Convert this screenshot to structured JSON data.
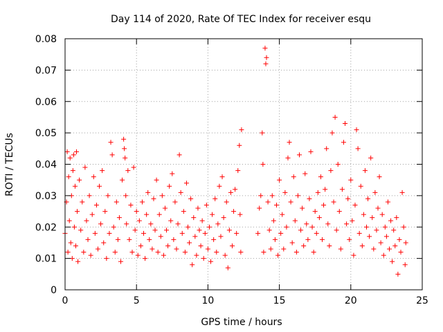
{
  "chart_data": {
    "type": "scatter",
    "title": "Day 114 of 2020, Rate Of TEC Index for receiver esqu",
    "xlabel": "GPS time / hours",
    "ylabel": "ROTI / TECUs",
    "xlim": [
      0,
      25
    ],
    "ylim": [
      0,
      0.08
    ],
    "xticks": [
      0,
      5,
      10,
      15,
      20,
      25
    ],
    "xtick_labels": [
      "0",
      "5",
      "10",
      "15",
      "20",
      "25"
    ],
    "yticks": [
      0,
      0.01,
      0.02,
      0.03,
      0.04,
      0.05,
      0.06,
      0.07,
      0.08
    ],
    "ytick_labels": [
      "0",
      "0.01",
      "0.02",
      "0.03",
      "0.04",
      "0.05",
      "0.06",
      "0.07",
      "0.08"
    ],
    "grid": true,
    "marker": "+",
    "color": "#ff0000",
    "series": [
      {
        "name": "ROTI",
        "points": [
          [
            0.0,
            0.018
          ],
          [
            0.1,
            0.028
          ],
          [
            0.15,
            0.044
          ],
          [
            0.2,
            0.012
          ],
          [
            0.25,
            0.036
          ],
          [
            0.3,
            0.022
          ],
          [
            0.35,
            0.042
          ],
          [
            0.4,
            0.015
          ],
          [
            0.45,
            0.03
          ],
          [
            0.5,
            0.01
          ],
          [
            0.55,
            0.038
          ],
          [
            0.6,
            0.043
          ],
          [
            0.65,
            0.02
          ],
          [
            0.7,
            0.033
          ],
          [
            0.75,
            0.014
          ],
          [
            0.8,
            0.044
          ],
          [
            0.85,
            0.025
          ],
          [
            0.9,
            0.009
          ],
          [
            1.0,
            0.035
          ],
          [
            1.1,
            0.019
          ],
          [
            1.2,
            0.028
          ],
          [
            1.3,
            0.012
          ],
          [
            1.4,
            0.039
          ],
          [
            1.5,
            0.022
          ],
          [
            1.6,
            0.016
          ],
          [
            1.7,
            0.03
          ],
          [
            1.8,
            0.011
          ],
          [
            1.9,
            0.024
          ],
          [
            2.0,
            0.036
          ],
          [
            2.1,
            0.018
          ],
          [
            2.2,
            0.027
          ],
          [
            2.3,
            0.013
          ],
          [
            2.4,
            0.033
          ],
          [
            2.5,
            0.021
          ],
          [
            2.6,
            0.038
          ],
          [
            2.7,
            0.015
          ],
          [
            2.8,
            0.025
          ],
          [
            2.9,
            0.01
          ],
          [
            3.0,
            0.03
          ],
          [
            3.1,
            0.018
          ],
          [
            3.2,
            0.047
          ],
          [
            3.3,
            0.043
          ],
          [
            3.4,
            0.02
          ],
          [
            3.5,
            0.012
          ],
          [
            3.6,
            0.028
          ],
          [
            3.7,
            0.016
          ],
          [
            3.8,
            0.023
          ],
          [
            3.9,
            0.009
          ],
          [
            4.0,
            0.035
          ],
          [
            4.1,
            0.048
          ],
          [
            4.15,
            0.045
          ],
          [
            4.2,
            0.042
          ],
          [
            4.25,
            0.03
          ],
          [
            4.3,
            0.021
          ],
          [
            4.4,
            0.038
          ],
          [
            4.5,
            0.016
          ],
          [
            4.6,
            0.027
          ],
          [
            4.7,
            0.012
          ],
          [
            4.8,
            0.039
          ],
          [
            4.9,
            0.019
          ],
          [
            5.0,
            0.025
          ],
          [
            5.1,
            0.011
          ],
          [
            5.2,
            0.022
          ],
          [
            5.3,
            0.014
          ],
          [
            5.4,
            0.028
          ],
          [
            5.5,
            0.018
          ],
          [
            5.6,
            0.01
          ],
          [
            5.7,
            0.024
          ],
          [
            5.8,
            0.031
          ],
          [
            5.9,
            0.016
          ],
          [
            6.0,
            0.021
          ],
          [
            6.1,
            0.013
          ],
          [
            6.2,
            0.029
          ],
          [
            6.3,
            0.019
          ],
          [
            6.4,
            0.035
          ],
          [
            6.5,
            0.012
          ],
          [
            6.6,
            0.024
          ],
          [
            6.7,
            0.017
          ],
          [
            6.8,
            0.03
          ],
          [
            6.9,
            0.011
          ],
          [
            7.0,
            0.026
          ],
          [
            7.1,
            0.019
          ],
          [
            7.2,
            0.014
          ],
          [
            7.3,
            0.033
          ],
          [
            7.4,
            0.022
          ],
          [
            7.5,
            0.037
          ],
          [
            7.6,
            0.016
          ],
          [
            7.7,
            0.028
          ],
          [
            7.8,
            0.013
          ],
          [
            7.9,
            0.021
          ],
          [
            8.0,
            0.043
          ],
          [
            8.1,
            0.031
          ],
          [
            8.2,
            0.018
          ],
          [
            8.3,
            0.025
          ],
          [
            8.4,
            0.012
          ],
          [
            8.5,
            0.034
          ],
          [
            8.6,
            0.02
          ],
          [
            8.7,
            0.015
          ],
          [
            8.8,
            0.029
          ],
          [
            8.9,
            0.008
          ],
          [
            9.0,
            0.023
          ],
          [
            9.1,
            0.017
          ],
          [
            9.2,
            0.011
          ],
          [
            9.3,
            0.026
          ],
          [
            9.4,
            0.019
          ],
          [
            9.5,
            0.014
          ],
          [
            9.6,
            0.022
          ],
          [
            9.7,
            0.01
          ],
          [
            9.8,
            0.018
          ],
          [
            9.9,
            0.027
          ],
          [
            10.0,
            0.013
          ],
          [
            10.1,
            0.02
          ],
          [
            10.2,
            0.009
          ],
          [
            10.3,
            0.024
          ],
          [
            10.4,
            0.016
          ],
          [
            10.5,
            0.029
          ],
          [
            10.6,
            0.012
          ],
          [
            10.7,
            0.021
          ],
          [
            10.8,
            0.033
          ],
          [
            10.9,
            0.017
          ],
          [
            11.0,
            0.036
          ],
          [
            11.1,
            0.023
          ],
          [
            11.2,
            0.011
          ],
          [
            11.3,
            0.028
          ],
          [
            11.4,
            0.007
          ],
          [
            11.5,
            0.019
          ],
          [
            11.6,
            0.031
          ],
          [
            11.7,
            0.014
          ],
          [
            11.8,
            0.025
          ],
          [
            11.9,
            0.032
          ],
          [
            12.0,
            0.018
          ],
          [
            12.1,
            0.038
          ],
          [
            12.2,
            0.046
          ],
          [
            12.25,
            0.024
          ],
          [
            12.3,
            0.012
          ],
          [
            12.35,
            0.051
          ],
          [
            13.5,
            0.018
          ],
          [
            13.6,
            0.026
          ],
          [
            13.7,
            0.03
          ],
          [
            13.8,
            0.05
          ],
          [
            13.85,
            0.04
          ],
          [
            13.9,
            0.012
          ],
          [
            14.0,
            0.077
          ],
          [
            14.05,
            0.072
          ],
          [
            14.1,
            0.074
          ],
          [
            14.2,
            0.028
          ],
          [
            14.3,
            0.019
          ],
          [
            14.4,
            0.013
          ],
          [
            14.5,
            0.03
          ],
          [
            14.6,
            0.022
          ],
          [
            14.7,
            0.016
          ],
          [
            14.8,
            0.027
          ],
          [
            14.9,
            0.011
          ],
          [
            15.0,
            0.035
          ],
          [
            15.1,
            0.018
          ],
          [
            15.2,
            0.024
          ],
          [
            15.3,
            0.013
          ],
          [
            15.4,
            0.031
          ],
          [
            15.5,
            0.02
          ],
          [
            15.6,
            0.042
          ],
          [
            15.7,
            0.047
          ],
          [
            15.8,
            0.028
          ],
          [
            15.9,
            0.015
          ],
          [
            16.0,
            0.036
          ],
          [
            16.1,
            0.022
          ],
          [
            16.2,
            0.012
          ],
          [
            16.3,
            0.03
          ],
          [
            16.4,
            0.043
          ],
          [
            16.5,
            0.019
          ],
          [
            16.6,
            0.026
          ],
          [
            16.7,
            0.014
          ],
          [
            16.8,
            0.037
          ],
          [
            16.9,
            0.021
          ],
          [
            17.0,
            0.016
          ],
          [
            17.1,
            0.029
          ],
          [
            17.2,
            0.044
          ],
          [
            17.3,
            0.02
          ],
          [
            17.4,
            0.012
          ],
          [
            17.5,
            0.025
          ],
          [
            17.6,
            0.018
          ],
          [
            17.7,
            0.031
          ],
          [
            17.8,
            0.023
          ],
          [
            17.9,
            0.036
          ],
          [
            18.0,
            0.016
          ],
          [
            18.1,
            0.027
          ],
          [
            18.2,
            0.032
          ],
          [
            18.3,
            0.045
          ],
          [
            18.4,
            0.021
          ],
          [
            18.5,
            0.014
          ],
          [
            18.6,
            0.038
          ],
          [
            18.7,
            0.05
          ],
          [
            18.8,
            0.028
          ],
          [
            18.9,
            0.055
          ],
          [
            19.0,
            0.019
          ],
          [
            19.1,
            0.04
          ],
          [
            19.2,
            0.025
          ],
          [
            19.3,
            0.013
          ],
          [
            19.4,
            0.032
          ],
          [
            19.5,
            0.047
          ],
          [
            19.6,
            0.053
          ],
          [
            19.7,
            0.021
          ],
          [
            19.8,
            0.029
          ],
          [
            19.9,
            0.016
          ],
          [
            20.0,
            0.035
          ],
          [
            20.1,
            0.022
          ],
          [
            20.2,
            0.011
          ],
          [
            20.3,
            0.027
          ],
          [
            20.4,
            0.051
          ],
          [
            20.5,
            0.045
          ],
          [
            20.6,
            0.018
          ],
          [
            20.7,
            0.033
          ],
          [
            20.8,
            0.014
          ],
          [
            20.9,
            0.024
          ],
          [
            21.0,
            0.038
          ],
          [
            21.1,
            0.02
          ],
          [
            21.2,
            0.029
          ],
          [
            21.3,
            0.017
          ],
          [
            21.4,
            0.042
          ],
          [
            21.5,
            0.023
          ],
          [
            21.6,
            0.013
          ],
          [
            21.7,
            0.031
          ],
          [
            21.8,
            0.019
          ],
          [
            21.9,
            0.026
          ],
          [
            22.0,
            0.036
          ],
          [
            22.1,
            0.015
          ],
          [
            22.2,
            0.024
          ],
          [
            22.3,
            0.011
          ],
          [
            22.4,
            0.02
          ],
          [
            22.5,
            0.017
          ],
          [
            22.6,
            0.028
          ],
          [
            22.7,
            0.013
          ],
          [
            22.8,
            0.022
          ],
          [
            22.9,
            0.009
          ],
          [
            23.0,
            0.019
          ],
          [
            23.1,
            0.014
          ],
          [
            23.2,
            0.023
          ],
          [
            23.3,
            0.005
          ],
          [
            23.4,
            0.016
          ],
          [
            23.5,
            0.012
          ],
          [
            23.6,
            0.031
          ],
          [
            23.7,
            0.02
          ],
          [
            23.8,
            0.008
          ],
          [
            23.85,
            0.015
          ]
        ]
      }
    ]
  }
}
